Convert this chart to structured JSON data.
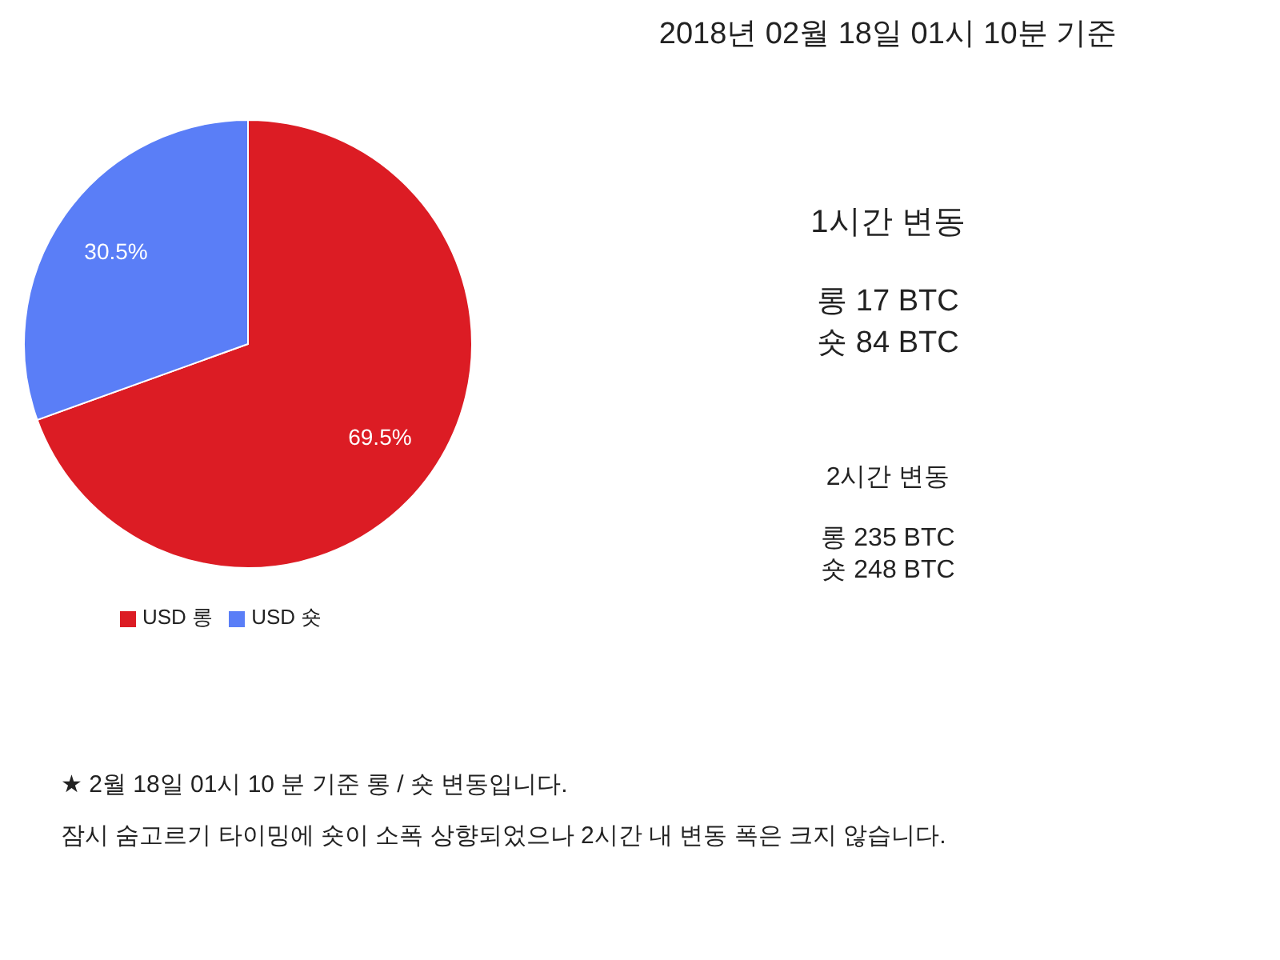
{
  "chart_data": {
    "type": "pie",
    "title": "2018년 02월 18일 01시 10분 기준",
    "categories": [
      "USD 롱",
      "USD 숏"
    ],
    "values": [
      69.5,
      30.5
    ],
    "colors": [
      "#dc1c24",
      "#5a7ef7"
    ],
    "value_labels": [
      "69.5%",
      "30.5%"
    ],
    "legend": "bottom left",
    "annotations": [
      "1시간 변동",
      "롱 17 BTC",
      "숏 84 BTC",
      "2시간 변동",
      "롱 235 BTC",
      "숏 248 BTC",
      "★ 2월 18일 01시 10 분 기준 롱 / 숏  변동입니다.",
      "잠시 숨고르기 타이밍에 숏이 소폭 상향되었으나 2시간 내 변동 폭은 크지 않습니다."
    ]
  }
}
